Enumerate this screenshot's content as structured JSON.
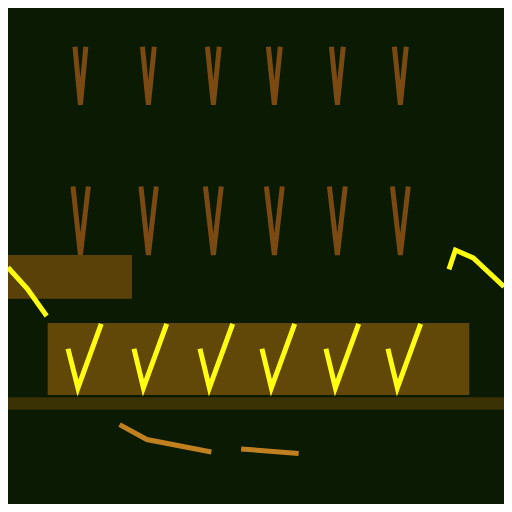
{
  "chart_data": {
    "type": "line",
    "tick_labels": false,
    "grid": false,
    "xlim": [
      0,
      100
    ],
    "ylim": [
      0,
      100
    ],
    "xticks": [
      0,
      100
    ],
    "yticks": [
      0,
      100
    ],
    "bands": [
      {
        "x": [
          8,
          93
        ],
        "y": [
          22,
          36.5
        ],
        "color": "#b8730e"
      },
      {
        "x": [
          0,
          25
        ],
        "y": [
          41.4,
          50.2
        ],
        "color": "#a8680c"
      },
      {
        "x": [
          0,
          100
        ],
        "y": [
          19,
          21.5
        ],
        "color": "#6a4a08"
      }
    ],
    "series": [
      {
        "color": "#ffff10",
        "x": [
          0,
          3.9,
          7.8
        ],
        "y": [
          47.7,
          43.4,
          37.9
        ]
      },
      {
        "color": "#ffff10",
        "x": [
          12.1,
          14.1,
          18.8
        ],
        "y": [
          31.3,
          23.4,
          36.3
        ]
      },
      {
        "color": "#ffff10",
        "x": [
          25.4,
          27.3,
          32.0
        ],
        "y": [
          31.3,
          23.4,
          36.3
        ]
      },
      {
        "color": "#ffff10",
        "x": [
          38.7,
          40.6,
          45.3
        ],
        "y": [
          31.3,
          23.4,
          36.3
        ]
      },
      {
        "color": "#ffff10",
        "x": [
          51.2,
          53.1,
          57.8
        ],
        "y": [
          31.3,
          23.4,
          36.3
        ]
      },
      {
        "color": "#ffff10",
        "x": [
          64.1,
          66.0,
          70.7
        ],
        "y": [
          31.3,
          23.4,
          36.3
        ]
      },
      {
        "color": "#ffff10",
        "x": [
          76.6,
          78.5,
          83.2
        ],
        "y": [
          31.3,
          23.4,
          36.3
        ]
      },
      {
        "color": "#ffff10",
        "x": [
          88.9,
          90.2,
          93.8,
          100
        ],
        "y": [
          47.3,
          51.2,
          49.6,
          43.8
        ]
      },
      {
        "color": "#7a4a12",
        "x": [
          13.5,
          14.6,
          15.7
        ],
        "y": [
          92.2,
          80.5,
          92.2
        ]
      },
      {
        "color": "#7a4a12",
        "x": [
          27.1,
          28.3,
          29.5
        ],
        "y": [
          92.2,
          80.5,
          92.2
        ]
      },
      {
        "color": "#7a4a12",
        "x": [
          40.2,
          41.4,
          42.6
        ],
        "y": [
          92.2,
          80.5,
          92.2
        ]
      },
      {
        "color": "#7a4a12",
        "x": [
          52.5,
          53.7,
          54.9
        ],
        "y": [
          92.2,
          80.5,
          92.2
        ]
      },
      {
        "color": "#7a4a12",
        "x": [
          65.2,
          66.4,
          67.6
        ],
        "y": [
          92.2,
          80.5,
          92.2
        ]
      },
      {
        "color": "#7a4a12",
        "x": [
          77.9,
          79.1,
          80.3
        ],
        "y": [
          92.2,
          80.5,
          92.2
        ]
      },
      {
        "color": "#7a4a12",
        "x": [
          13.1,
          14.6,
          16.2
        ],
        "y": [
          64,
          50.2,
          64
        ]
      },
      {
        "color": "#7a4a12",
        "x": [
          26.8,
          28.3,
          29.9
        ],
        "y": [
          64,
          50.2,
          64
        ]
      },
      {
        "color": "#7a4a12",
        "x": [
          39.8,
          41.4,
          43.0
        ],
        "y": [
          64,
          50.2,
          64
        ]
      },
      {
        "color": "#7a4a12",
        "x": [
          52.1,
          53.7,
          55.3
        ],
        "y": [
          64,
          50.2,
          64
        ]
      },
      {
        "color": "#7a4a12",
        "x": [
          64.8,
          66.4,
          68.0
        ],
        "y": [
          64,
          50.2,
          64
        ]
      },
      {
        "color": "#7a4a12",
        "x": [
          77.5,
          79.1,
          80.7
        ],
        "y": [
          64,
          50.2,
          64
        ]
      },
      {
        "color": "#c08020",
        "x": [
          22.5,
          28,
          41
        ],
        "y": [
          16,
          13,
          10.5
        ]
      },
      {
        "color": "#c08020",
        "x": [
          47,
          58.6
        ],
        "y": [
          11.1,
          10.2
        ]
      }
    ]
  }
}
